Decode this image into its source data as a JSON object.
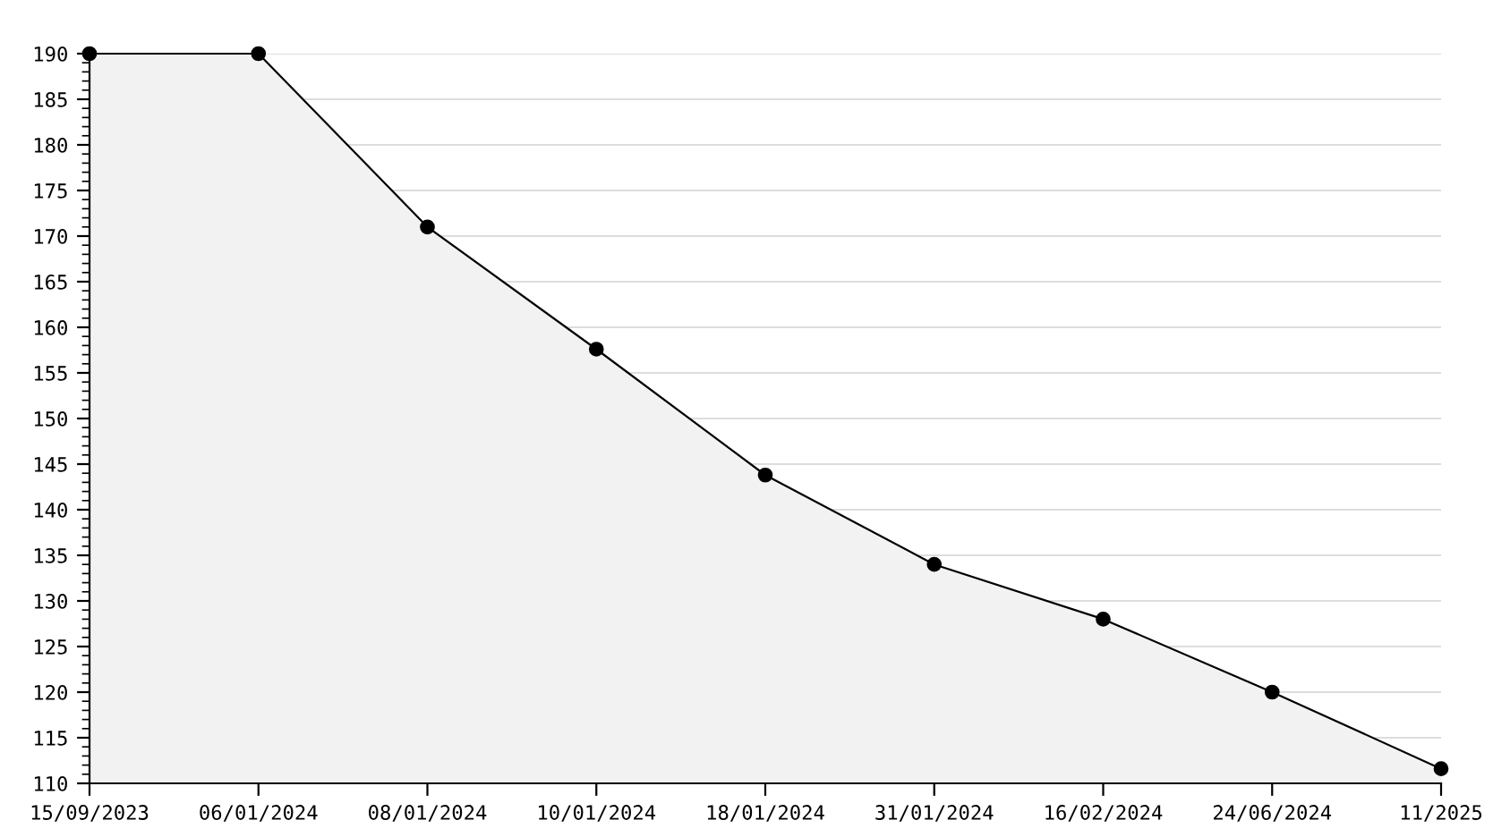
{
  "chart_data": {
    "type": "area",
    "categories": [
      "15/09/2023",
      "06/01/2024",
      "08/01/2024",
      "10/01/2024",
      "18/01/2024",
      "31/01/2024",
      "16/02/2024",
      "24/06/2024",
      "11/2025"
    ],
    "series": [
      {
        "color": "#f2f2f2",
        "values": [
          190,
          190,
          171,
          157.6,
          143.8,
          134,
          128,
          120,
          111.6
        ]
      }
    ],
    "ylim": [
      110,
      190
    ],
    "yticks": [
      110,
      115,
      120,
      125,
      130,
      135,
      140,
      145,
      150,
      155,
      160,
      165,
      170,
      175,
      180,
      185,
      190
    ],
    "grid": "y",
    "marker": "circle",
    "line_style": "solid",
    "legend": false
  }
}
